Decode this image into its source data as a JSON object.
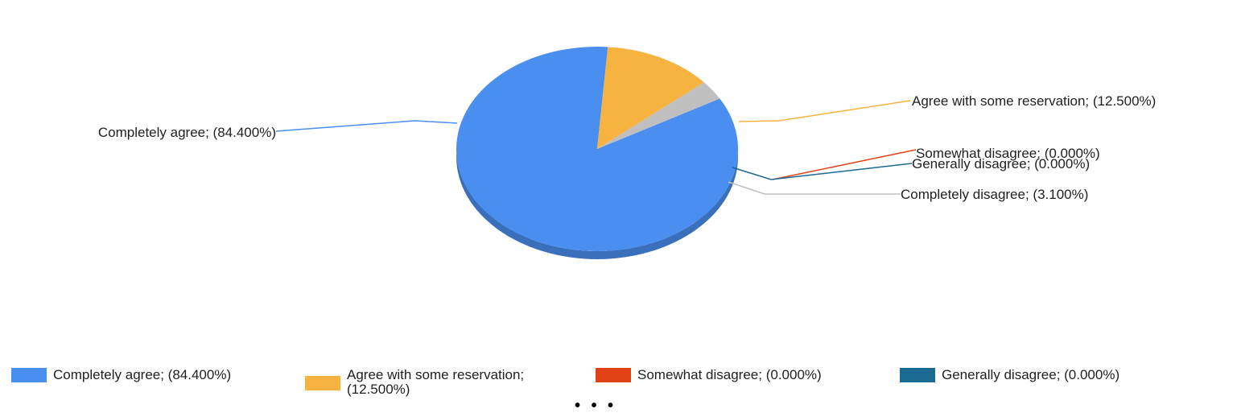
{
  "chart_data": {
    "type": "pie",
    "title": "",
    "colors": [
      "#4a8ef0",
      "#f7b33f",
      "#e04216",
      "#1a6a94",
      "#bfbfbf"
    ],
    "series": [
      {
        "label": "Completely agree; (84.400%)",
        "value": 84.4,
        "color": "#4a8ef0"
      },
      {
        "label": "Agree with some reservation; (12.500%)",
        "value": 12.5,
        "color": "#f7b33f"
      },
      {
        "label": "Somewhat disagree; (0.000%)",
        "value": 0.0,
        "color": "#e04216"
      },
      {
        "label": "Generally disagree; (0.000%)",
        "value": 0.0,
        "color": "#1a6a94"
      },
      {
        "label": "Completely disagree; (3.100%)",
        "value": 3.1,
        "color": "#bfbfbf"
      }
    ],
    "legend": {
      "placement": "bottom",
      "visible_items": [
        "Completely agree; (84.400%)",
        "Agree with some reservation; (12.500%)",
        "Somewhat disagree; (0.000%)",
        "Generally disagree; (0.000%)"
      ],
      "more_indicator": "• • •"
    }
  }
}
